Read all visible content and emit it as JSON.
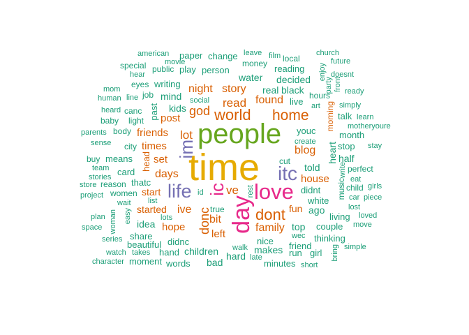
{
  "colors": {
    "teal": "#1b9e77",
    "orange": "#d95f02",
    "purple": "#7570b3",
    "pink": "#e7298a",
    "green": "#66a61e",
    "gold": "#e6ab02"
  },
  "words": [
    {
      "text": "american"
    },
    {
      "text": "paper"
    },
    {
      "text": "change"
    },
    {
      "text": "leave"
    },
    {
      "text": "film"
    },
    {
      "text": "church"
    },
    {
      "text": "movie"
    },
    {
      "text": "local"
    },
    {
      "text": "future"
    },
    {
      "text": "special"
    },
    {
      "text": "public"
    },
    {
      "text": "play"
    },
    {
      "text": "person"
    },
    {
      "text": "money"
    },
    {
      "text": "reading"
    },
    {
      "text": "enjoy"
    },
    {
      "text": "doesnt"
    },
    {
      "text": "hear"
    },
    {
      "text": "water"
    },
    {
      "text": "decided"
    },
    {
      "text": "front"
    },
    {
      "text": "eyes"
    },
    {
      "text": "writing"
    },
    {
      "text": "hours"
    },
    {
      "text": "party"
    },
    {
      "text": "ready"
    },
    {
      "text": "mom"
    },
    {
      "text": "job"
    },
    {
      "text": "night"
    },
    {
      "text": "story"
    },
    {
      "text": "real"
    },
    {
      "text": "black"
    },
    {
      "text": "human"
    },
    {
      "text": "line"
    },
    {
      "text": "mind"
    },
    {
      "text": "social"
    },
    {
      "text": "found"
    },
    {
      "text": "live"
    },
    {
      "text": "art"
    },
    {
      "text": "simply"
    },
    {
      "text": "read"
    },
    {
      "text": "heard"
    },
    {
      "text": "canc"
    },
    {
      "text": "past"
    },
    {
      "text": "kids"
    },
    {
      "text": "god"
    },
    {
      "text": "morning"
    },
    {
      "text": "learn"
    },
    {
      "text": "world"
    },
    {
      "text": "home"
    },
    {
      "text": "talk"
    },
    {
      "text": "baby"
    },
    {
      "text": "light"
    },
    {
      "text": "post"
    },
    {
      "text": "motheryoure"
    },
    {
      "text": "body"
    },
    {
      "text": "parents"
    },
    {
      "text": "friends"
    },
    {
      "text": "people"
    },
    {
      "text": "youc"
    },
    {
      "text": "month"
    },
    {
      "text": "sense"
    },
    {
      "text": "lot"
    },
    {
      "text": "create"
    },
    {
      "text": "stop"
    },
    {
      "text": "city"
    },
    {
      "text": "times"
    },
    {
      "text": "blog"
    },
    {
      "text": "heart"
    },
    {
      "text": "stay"
    },
    {
      "text": "buy"
    },
    {
      "text": "means"
    },
    {
      "text": "im"
    },
    {
      "text": "half"
    },
    {
      "text": "set"
    },
    {
      "text": "cut"
    },
    {
      "text": "write"
    },
    {
      "text": "team"
    },
    {
      "text": "head"
    },
    {
      "text": "told"
    },
    {
      "text": "perfect"
    },
    {
      "text": "time"
    },
    {
      "text": "stories"
    },
    {
      "text": "card"
    },
    {
      "text": "days"
    },
    {
      "text": "itc"
    },
    {
      "text": "eat"
    },
    {
      "text": "thatc"
    },
    {
      "text": "house"
    },
    {
      "text": "reason"
    },
    {
      "text": "store"
    },
    {
      "text": "life"
    },
    {
      "text": "music"
    },
    {
      "text": "child"
    },
    {
      "text": "girls"
    },
    {
      "text": "women"
    },
    {
      "text": "start"
    },
    {
      "text": "id"
    },
    {
      "text": "ve"
    },
    {
      "text": "love"
    },
    {
      "text": "didnt"
    },
    {
      "text": "project"
    },
    {
      "text": "car"
    },
    {
      "text": "piece"
    },
    {
      "text": "list"
    },
    {
      "text": "white"
    },
    {
      "text": "wait"
    },
    {
      "text": "ic"
    },
    {
      "text": "rest"
    },
    {
      "text": "started"
    },
    {
      "text": "ive"
    },
    {
      "text": "ago"
    },
    {
      "text": "lost"
    },
    {
      "text": "dont"
    },
    {
      "text": "fun"
    },
    {
      "text": "true"
    },
    {
      "text": "plan"
    },
    {
      "text": "easy"
    },
    {
      "text": "lots"
    },
    {
      "text": "bit"
    },
    {
      "text": "living"
    },
    {
      "text": "loved"
    },
    {
      "text": "woman"
    },
    {
      "text": "idea"
    },
    {
      "text": "day"
    },
    {
      "text": "space"
    },
    {
      "text": "hope"
    },
    {
      "text": "donc"
    },
    {
      "text": "family"
    },
    {
      "text": "top"
    },
    {
      "text": "couple"
    },
    {
      "text": "move"
    },
    {
      "text": "share"
    },
    {
      "text": "left"
    },
    {
      "text": "wec"
    },
    {
      "text": "series"
    },
    {
      "text": "thinking"
    },
    {
      "text": "didnc"
    },
    {
      "text": "nice"
    },
    {
      "text": "beautiful"
    },
    {
      "text": "friend"
    },
    {
      "text": "simple"
    },
    {
      "text": "watch"
    },
    {
      "text": "takes"
    },
    {
      "text": "hand"
    },
    {
      "text": "children"
    },
    {
      "text": "walk"
    },
    {
      "text": "makes"
    },
    {
      "text": "run"
    },
    {
      "text": "girl"
    },
    {
      "text": "bring"
    },
    {
      "text": "character"
    },
    {
      "text": "moment"
    },
    {
      "text": "words"
    },
    {
      "text": "bad"
    },
    {
      "text": "late"
    },
    {
      "text": "hard"
    },
    {
      "text": "minutes"
    },
    {
      "text": "short"
    }
  ]
}
